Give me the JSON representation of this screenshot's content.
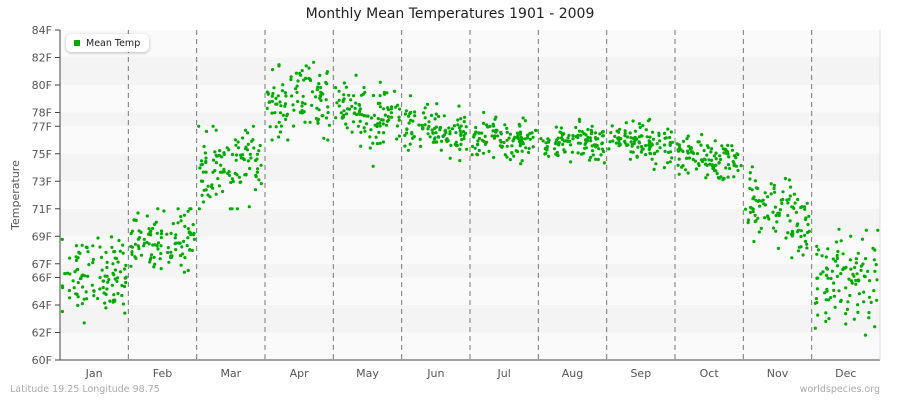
{
  "title": "Monthly Mean Temperatures 1901 - 2009",
  "legend": {
    "label": "Mean Temp",
    "color": "#00aa00"
  },
  "footer": {
    "left": "Latitude 19.25 Longitude 98.75",
    "right": "worldspecies.org"
  },
  "chart_data": {
    "type": "scatter",
    "title": "Monthly Mean Temperatures 1901 - 2009",
    "xlabel": "",
    "ylabel": "Temperature",
    "ylim": [
      60,
      84
    ],
    "yticks": [
      "60F",
      "62F",
      "64F",
      "66F",
      "67F",
      "69F",
      "71F",
      "73F",
      "75F",
      "77F",
      "78F",
      "80F",
      "82F",
      "84F"
    ],
    "ytick_values": [
      60,
      62,
      64,
      66,
      67,
      69,
      71,
      73,
      75,
      77,
      78,
      80,
      82,
      84
    ],
    "categories": [
      "Jan",
      "Feb",
      "Mar",
      "Apr",
      "May",
      "Jun",
      "Jul",
      "Aug",
      "Sep",
      "Oct",
      "Nov",
      "Dec"
    ],
    "series": [
      {
        "name": "Mean Temp",
        "color": "#00aa00",
        "monthly_summary": [
          {
            "month": "Jan",
            "mean_start": 65.8,
            "mean_end": 66.6,
            "spread": 1.4,
            "min": 61.2,
            "max": 70.0
          },
          {
            "month": "Feb",
            "mean_start": 68.5,
            "mean_end": 69.0,
            "spread": 1.1,
            "min": 65.8,
            "max": 71.0
          },
          {
            "month": "Mar",
            "mean_start": 73.5,
            "mean_end": 74.5,
            "spread": 1.3,
            "min": 71.0,
            "max": 77.0
          },
          {
            "month": "Apr",
            "mean_start": 78.2,
            "mean_end": 79.0,
            "spread": 1.3,
            "min": 76.0,
            "max": 82.8
          },
          {
            "month": "May",
            "mean_start": 78.2,
            "mean_end": 77.5,
            "spread": 1.3,
            "min": 73.0,
            "max": 82.4
          },
          {
            "month": "Jun",
            "mean_start": 76.8,
            "mean_end": 76.5,
            "spread": 0.8,
            "min": 74.5,
            "max": 79.5
          },
          {
            "month": "Jul",
            "mean_start": 76.2,
            "mean_end": 75.9,
            "spread": 0.7,
            "min": 73.5,
            "max": 78.0
          },
          {
            "month": "Aug",
            "mean_start": 75.8,
            "mean_end": 75.8,
            "spread": 0.7,
            "min": 73.5,
            "max": 77.5
          },
          {
            "month": "Sep",
            "mean_start": 76.0,
            "mean_end": 75.8,
            "spread": 0.7,
            "min": 73.5,
            "max": 77.5
          },
          {
            "month": "Oct",
            "mean_start": 75.0,
            "mean_end": 74.0,
            "spread": 0.8,
            "min": 71.5,
            "max": 77.3
          },
          {
            "month": "Nov",
            "mean_start": 71.5,
            "mean_end": 69.5,
            "spread": 1.3,
            "min": 66.0,
            "max": 74.5
          },
          {
            "month": "Dec",
            "mean_start": 66.0,
            "mean_end": 66.0,
            "spread": 1.6,
            "min": 60.8,
            "max": 70.0
          }
        ],
        "points_per_month": 109
      }
    ],
    "grid": "alternating horizontal bands, dashed vertical month separators",
    "legend_position": "top-left"
  }
}
